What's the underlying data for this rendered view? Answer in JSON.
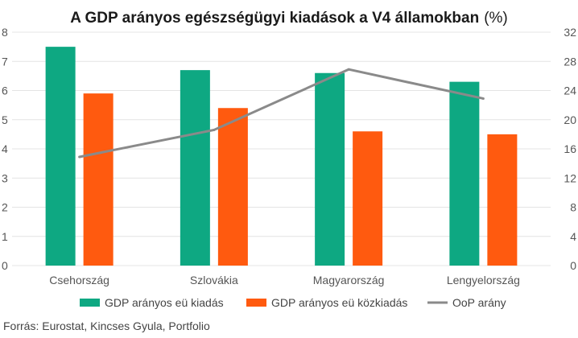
{
  "chart_data": {
    "type": "bar",
    "title": "A GDP arányos egészségügyi kiadások a V4 államokban",
    "title_unit": "(%)",
    "categories": [
      "Csehország",
      "Szlovákia",
      "Magyarország",
      "Lengyelország"
    ],
    "series": [
      {
        "name": "GDP arányos eü kiadás",
        "type": "bar",
        "axis": "left",
        "color": "#0ea882",
        "values": [
          7.5,
          6.7,
          6.6,
          6.3
        ]
      },
      {
        "name": "GDP arányos eü közkiadás",
        "type": "bar",
        "axis": "left",
        "color": "#ff5a0f",
        "values": [
          5.9,
          5.4,
          4.6,
          4.5
        ]
      },
      {
        "name": "OoP arány",
        "type": "line",
        "axis": "right",
        "color": "#8a8a8a",
        "values": [
          14.9,
          18.6,
          26.9,
          22.9
        ]
      }
    ],
    "y_left": {
      "min": 0,
      "max": 8,
      "ticks": [
        "0",
        "1",
        "2",
        "3",
        "4",
        "5",
        "6",
        "7",
        "8"
      ]
    },
    "y_right": {
      "min": 0,
      "max": 32,
      "ticks": [
        "0",
        "4",
        "8",
        "12",
        "16",
        "20",
        "24",
        "28",
        "32"
      ]
    },
    "grid": "horizontal",
    "legend_position": "bottom"
  },
  "source": "Forrás: Eurostat, Kincses Gyula, Portfolio"
}
